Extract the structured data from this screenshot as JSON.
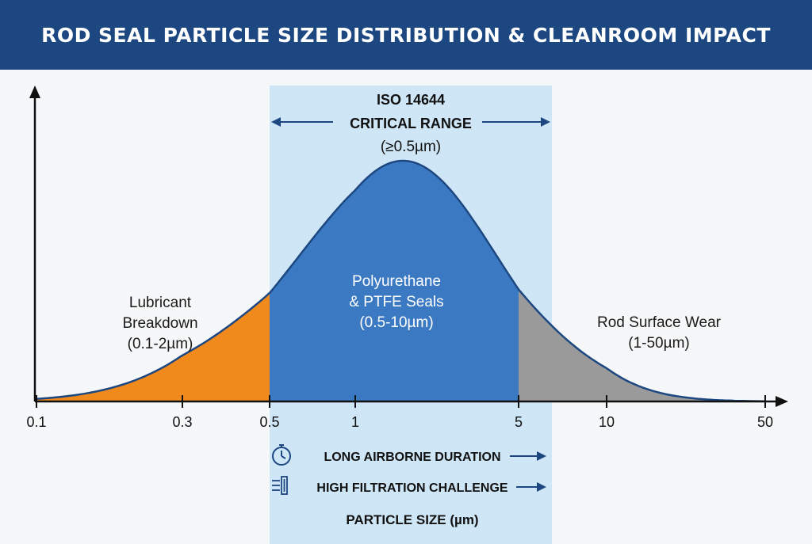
{
  "header": {
    "title": "ROD SEAL PARTICLE SIZE DISTRIBUTION & CLEANROOM IMPACT"
  },
  "colors": {
    "header_bg": "#1d4780",
    "band_fill": "#cfe6f6",
    "orange": "#f08a1c",
    "blue": "#3b7ac3",
    "gray": "#9a9a9a",
    "curve": "#1d4780",
    "arrow": "#1d4780"
  },
  "chart_data": {
    "type": "area",
    "title": "ROD SEAL PARTICLE SIZE DISTRIBUTION & CLEANROOM IMPACT",
    "xlabel": "PARTICLE SIZE (µm)",
    "ylabel": "",
    "x_scale": "log",
    "xlim": [
      0.1,
      50
    ],
    "ylim": [
      0,
      1
    ],
    "x_ticks": [
      0.1,
      0.3,
      0.5,
      1,
      5,
      10,
      50
    ],
    "x_tick_labels": [
      "0.1",
      "0.3",
      "0.5",
      "1",
      "5",
      "10",
      "50"
    ],
    "distribution": {
      "peak_um": 1.6,
      "peak_value": 1.0,
      "log10_sigma": 0.4
    },
    "regions": [
      {
        "name": "Lubricant Breakdown",
        "lines": [
          "Lubricant",
          "Breakdown",
          "(0.1-2µm)"
        ],
        "from": 0.1,
        "to": 0.5,
        "color": "#f08a1c"
      },
      {
        "name": "Polyurethane & PTFE Seals",
        "lines": [
          "Polyurethane",
          "& PTFE Seals",
          "(0.5-10µm)"
        ],
        "from": 0.5,
        "to": 5,
        "color": "#3b7ac3"
      },
      {
        "name": "Rod Surface Wear",
        "lines": [
          "Rod Surface Wear",
          "(1-50µm)"
        ],
        "from": 5,
        "to": 50,
        "color": "#9a9a9a"
      }
    ],
    "critical_band": {
      "from": 0.5,
      "to": 6.5,
      "title_lines": [
        "ISO 14644",
        "CRITICAL RANGE"
      ],
      "subtitle": "(≥0.5µm)"
    },
    "notes": [
      {
        "icon": "stopwatch-icon",
        "text": "LONG AIRBORNE DURATION"
      },
      {
        "icon": "filter-icon",
        "text": "HIGH FILTRATION CHALLENGE"
      }
    ]
  }
}
